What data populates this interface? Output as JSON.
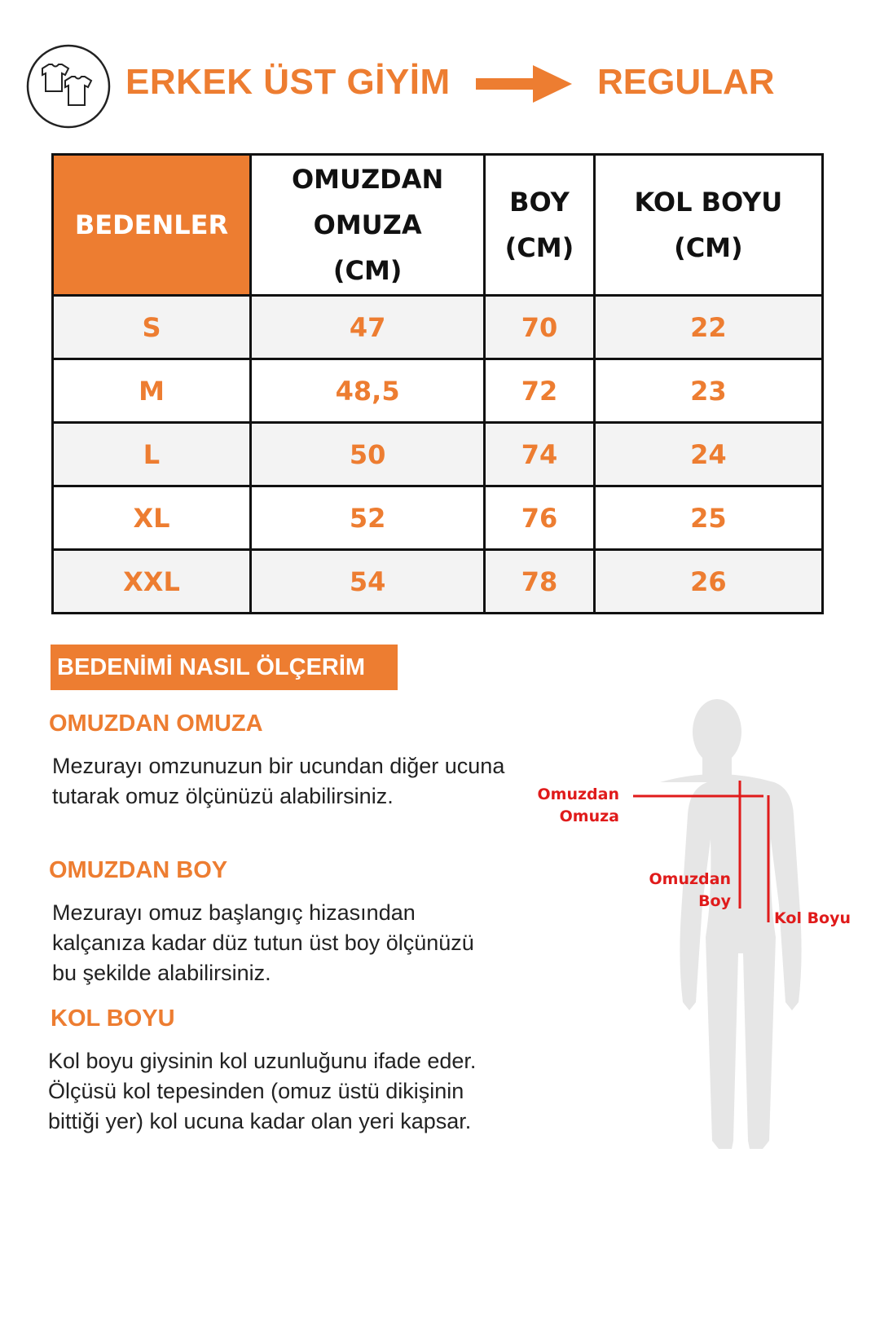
{
  "header": {
    "title": "ERKEK ÜST GİYİM",
    "fit": "REGULAR",
    "icon": "tshirts-icon",
    "arrow": "arrow-right-icon"
  },
  "table": {
    "headers": [
      "BEDENLER",
      "OMUZDAN OMUZA (CM)",
      "BOY (CM)",
      "KOL BOYU (CM)"
    ],
    "header_lines": [
      [
        "BEDENLER"
      ],
      [
        "OMUZDAN",
        "OMUZA",
        "(CM)"
      ],
      [
        "BOY",
        "(CM)"
      ],
      [
        "KOL BOYU",
        "(CM)"
      ]
    ],
    "rows": [
      [
        "S",
        "47",
        "70",
        "22"
      ],
      [
        "M",
        "48,5",
        "72",
        "23"
      ],
      [
        "L",
        "50",
        "74",
        "24"
      ],
      [
        "XL",
        "52",
        "76",
        "25"
      ],
      [
        "XXL",
        "54",
        "78",
        "26"
      ]
    ]
  },
  "guide": {
    "title": "BEDENİMİ NASIL ÖLÇERİM",
    "sections": [
      {
        "heading": "OMUZDAN OMUZA",
        "text": "Mezurayı omzunuzun bir ucundan diğer ucuna tutarak omuz ölçünüzü alabilirsiniz."
      },
      {
        "heading": "OMUZDAN BOY",
        "text": "Mezurayı omuz başlangıç hizasından kalçanıza kadar düz tutun üst boy ölçünüzü bu şekilde alabilirsiniz."
      },
      {
        "heading": "KOL BOYU",
        "text": "Kol boyu giysinin kol uzunluğunu ifade eder. Ölçüsü kol tepesinden (omuz üstü dikişinin bittiği yer) kol ucuna kadar olan yeri kapsar."
      }
    ]
  },
  "figure": {
    "label_shoulder_1": "Omuzdan",
    "label_shoulder_2": "Omuza",
    "label_length_1": "Omuzdan",
    "label_length_2": "Boy",
    "label_sleeve": "Kol Boyu"
  },
  "colors": {
    "accent": "#ED7D31",
    "measure": "#E01B1B",
    "silhouette": "#E6E6E6"
  }
}
